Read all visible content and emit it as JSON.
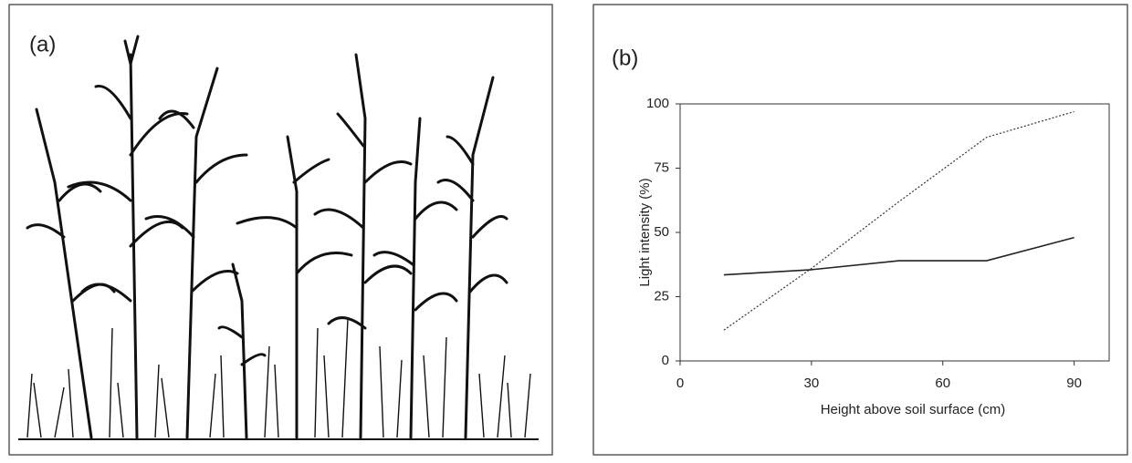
{
  "illustration": {
    "panel_label": "(a)"
  },
  "chart_data": {
    "type": "line",
    "panel_label": "(b)",
    "x_label": "Height above soil surface (cm)",
    "y_label": "Light intensity (%)",
    "x": [
      10,
      30,
      50,
      70,
      90
    ],
    "series": [
      {
        "color": "#222222",
        "style": "solid",
        "values": [
          33.5,
          35.5,
          39,
          39,
          48
        ]
      },
      {
        "color": "#333333",
        "style": "dotted",
        "values": [
          12,
          36,
          62,
          87,
          97
        ]
      }
    ],
    "xlim": [
      0,
      98
    ],
    "ylim": [
      0,
      100
    ],
    "xticks": [
      0,
      30,
      60,
      90
    ],
    "yticks": [
      0,
      25,
      50,
      75,
      100
    ]
  }
}
